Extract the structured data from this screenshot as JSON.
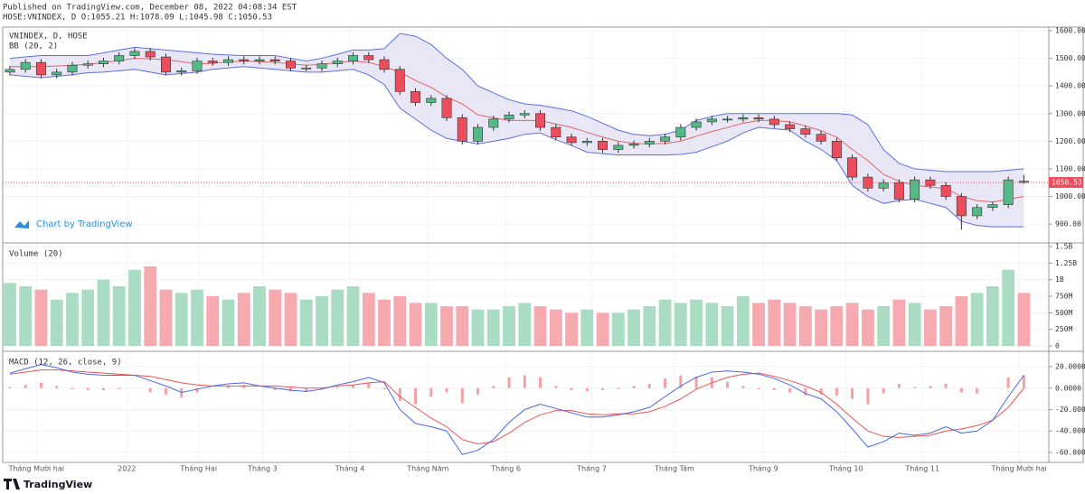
{
  "header": {
    "published": "Published on TradingView.com, December 08, 2022 04:08:34 EST",
    "symbol_line": "HOSE:VNINDEX, D O:1055.21 H:1078.09 L:1045.98 C:1050.53",
    "watermark": "Chart by TradingView",
    "footer": "TradingView"
  },
  "chart_data": [
    {
      "type": "candlestick",
      "title": "VNINDEX, D, HOSE",
      "indicator": "BB (20, 2)",
      "xlim": [
        -0.46,
        66.6
      ],
      "ylim": [
        835,
        1613
      ],
      "yticks": [
        {
          "value": 900,
          "label": "900.00"
        },
        {
          "value": 1000,
          "label": "1000.00"
        },
        {
          "value": 1100,
          "label": "1100.00"
        },
        {
          "value": 1200,
          "label": "1200.00"
        },
        {
          "value": 1300,
          "label": "1300.00"
        },
        {
          "value": 1400,
          "label": "1400.00"
        },
        {
          "value": 1500,
          "label": "1500.00"
        },
        {
          "value": 1600,
          "label": "1600.00"
        }
      ],
      "up_color": "#53b987",
      "down_color": "#eb4d5c",
      "band_color": "#5b6ee1",
      "band_fill": "#e4e1f4",
      "basis_color": "#e06666",
      "open": [
        1450,
        1460,
        1485,
        1440,
        1450,
        1475,
        1480,
        1490,
        1510,
        1525,
        1505,
        1450,
        1455,
        1490,
        1485,
        1495,
        1490,
        1495,
        1490,
        1465,
        1465,
        1480,
        1490,
        1510,
        1495,
        1460,
        1380,
        1340,
        1355,
        1285,
        1200,
        1250,
        1280,
        1295,
        1300,
        1250,
        1215,
        1195,
        1200,
        1170,
        1185,
        1190,
        1200,
        1215,
        1250,
        1270,
        1280,
        1280,
        1285,
        1280,
        1260,
        1245,
        1225,
        1200,
        1140,
        1070,
        1030,
        1050,
        990,
        1060,
        1040,
        1000,
        930,
        960,
        970,
        1055.21
      ],
      "high": [
        1472,
        1497,
        1497,
        1462,
        1487,
        1492,
        1502,
        1522,
        1537,
        1537,
        1517,
        1467,
        1502,
        1502,
        1507,
        1507,
        1507,
        1507,
        1502,
        1477,
        1492,
        1502,
        1522,
        1522,
        1507,
        1472,
        1392,
        1367,
        1367,
        1297,
        1262,
        1292,
        1307,
        1312,
        1312,
        1262,
        1227,
        1212,
        1212,
        1197,
        1202,
        1212,
        1227,
        1262,
        1282,
        1292,
        1292,
        1297,
        1297,
        1292,
        1272,
        1257,
        1237,
        1212,
        1152,
        1082,
        1062,
        1062,
        1072,
        1072,
        1052,
        1012,
        972,
        982,
        1072,
        1078.09
      ],
      "low": [
        1438,
        1448,
        1428,
        1428,
        1438,
        1463,
        1468,
        1478,
        1498,
        1493,
        1438,
        1438,
        1443,
        1473,
        1473,
        1478,
        1478,
        1478,
        1453,
        1453,
        1453,
        1468,
        1478,
        1483,
        1448,
        1368,
        1328,
        1328,
        1273,
        1188,
        1188,
        1238,
        1268,
        1283,
        1238,
        1203,
        1183,
        1183,
        1158,
        1158,
        1173,
        1178,
        1188,
        1203,
        1238,
        1258,
        1268,
        1268,
        1268,
        1248,
        1233,
        1213,
        1188,
        1128,
        1058,
        1018,
        1018,
        978,
        978,
        1028,
        988,
        880,
        918,
        948,
        958,
        1045.98
      ],
      "close": [
        1460,
        1485,
        1440,
        1450,
        1475,
        1480,
        1490,
        1510,
        1525,
        1505,
        1450,
        1455,
        1490,
        1485,
        1495,
        1490,
        1495,
        1490,
        1465,
        1465,
        1480,
        1490,
        1510,
        1495,
        1460,
        1380,
        1340,
        1355,
        1285,
        1200,
        1250,
        1280,
        1295,
        1300,
        1250,
        1215,
        1195,
        1200,
        1170,
        1185,
        1190,
        1200,
        1215,
        1250,
        1270,
        1280,
        1280,
        1285,
        1280,
        1260,
        1245,
        1225,
        1200,
        1140,
        1070,
        1030,
        1050,
        990,
        1060,
        1040,
        1000,
        930,
        960,
        970,
        1060,
        1050.53
      ],
      "bb_upper": [
        1500,
        1505,
        1510,
        1510,
        1510,
        1510,
        1520,
        1530,
        1540,
        1535,
        1530,
        1525,
        1520,
        1515,
        1512,
        1510,
        1510,
        1510,
        1500,
        1490,
        1500,
        1515,
        1530,
        1530,
        1535,
        1590,
        1580,
        1550,
        1500,
        1460,
        1400,
        1375,
        1350,
        1335,
        1330,
        1320,
        1310,
        1290,
        1265,
        1240,
        1225,
        1220,
        1225,
        1240,
        1275,
        1290,
        1300,
        1300,
        1300,
        1300,
        1300,
        1300,
        1300,
        1300,
        1295,
        1260,
        1170,
        1120,
        1100,
        1095,
        1090,
        1090,
        1090,
        1090,
        1095,
        1100
      ],
      "bb_basis": [
        1470,
        1470,
        1470,
        1472,
        1475,
        1478,
        1485,
        1492,
        1500,
        1498,
        1495,
        1488,
        1480,
        1482,
        1487,
        1490,
        1488,
        1485,
        1480,
        1475,
        1478,
        1485,
        1490,
        1485,
        1470,
        1450,
        1420,
        1395,
        1360,
        1335,
        1295,
        1285,
        1275,
        1275,
        1275,
        1262,
        1250,
        1232,
        1215,
        1200,
        1192,
        1190,
        1192,
        1200,
        1218,
        1235,
        1250,
        1265,
        1275,
        1275,
        1270,
        1255,
        1238,
        1215,
        1170,
        1130,
        1080,
        1055,
        1040,
        1035,
        1028,
        1000,
        985,
        980,
        990,
        1000
      ],
      "bb_lower": [
        1440,
        1435,
        1430,
        1435,
        1440,
        1448,
        1450,
        1455,
        1460,
        1450,
        1440,
        1445,
        1450,
        1460,
        1465,
        1470,
        1465,
        1460,
        1455,
        1450,
        1450,
        1455,
        1460,
        1440,
        1405,
        1320,
        1280,
        1240,
        1210,
        1200,
        1190,
        1200,
        1210,
        1225,
        1230,
        1205,
        1185,
        1160,
        1155,
        1150,
        1150,
        1150,
        1150,
        1152,
        1160,
        1180,
        1200,
        1230,
        1250,
        1245,
        1240,
        1200,
        1170,
        1130,
        1040,
        1000,
        975,
        985,
        990,
        975,
        960,
        910,
        895,
        890,
        890,
        890
      ]
    },
    {
      "type": "bar",
      "title": "Volume (20)",
      "xlim": [
        -0.46,
        66.6
      ],
      "ylim": [
        -68000000,
        1541000000
      ],
      "yticks": [
        0,
        {
          "value": 250000000,
          "label": "250M"
        },
        {
          "value": 500000000,
          "label": "500M"
        },
        {
          "value": 750000000,
          "label": "750M"
        },
        {
          "value": 1000000000,
          "label": "1B"
        },
        {
          "value": 1250000000,
          "label": "1.25B"
        },
        {
          "value": 1500000000,
          "label": "1.5B"
        }
      ],
      "up_color": "#a9dcc3",
      "down_color": "#f7a9b0",
      "values": [
        950000000,
        900000000,
        850000000,
        700000000,
        800000000,
        850000000,
        1000000000,
        900000000,
        1150000000,
        1200000000,
        850000000,
        800000000,
        850000000,
        750000000,
        700000000,
        800000000,
        900000000,
        850000000,
        800000000,
        700000000,
        750000000,
        850000000,
        900000000,
        800000000,
        700000000,
        750000000,
        650000000,
        650000000,
        600000000,
        600000000,
        550000000,
        550000000,
        600000000,
        650000000,
        600000000,
        550000000,
        500000000,
        550000000,
        500000000,
        500000000,
        550000000,
        600000000,
        700000000,
        650000000,
        700000000,
        650000000,
        600000000,
        750000000,
        650000000,
        700000000,
        650000000,
        600000000,
        550000000,
        600000000,
        650000000,
        550000000,
        600000000,
        700000000,
        650000000,
        550000000,
        600000000,
        750000000,
        800000000,
        900000000,
        1150000000,
        800000000
      ]
    },
    {
      "type": "macd",
      "title": "MACD (12, 26, close, 9)",
      "xlim": [
        -0.46,
        66.6
      ],
      "ylim": [
        -69.3,
        33.5
      ],
      "yticks": [
        {
          "value": -60,
          "label": "-60.0000"
        },
        {
          "value": -40,
          "label": "-40.0000"
        },
        {
          "value": -20,
          "label": "-20.0000"
        },
        {
          "value": 0,
          "label": "0.0000"
        },
        {
          "value": 20,
          "label": "20.0000"
        }
      ],
      "xticks": [
        {
          "value": 1.7,
          "label": "Tháng Mười hai"
        },
        {
          "value": 7.5,
          "label": "2022"
        },
        {
          "value": 12.1,
          "label": "Tháng Hai"
        },
        {
          "value": 16.2,
          "label": "Tháng 3"
        },
        {
          "value": 21.8,
          "label": "Tháng 4"
        },
        {
          "value": 26.8,
          "label": "Tháng Năm"
        },
        {
          "value": 31.8,
          "label": "Tháng 6"
        },
        {
          "value": 37.3,
          "label": "Tháng 7"
        },
        {
          "value": 42.6,
          "label": "Tháng Tám"
        },
        {
          "value": 48.3,
          "label": "Tháng 9"
        },
        {
          "value": 53.6,
          "label": "Tháng 10"
        },
        {
          "value": 58.5,
          "label": "Tháng 11"
        },
        {
          "value": 64.7,
          "label": "Tháng Mười hai"
        }
      ],
      "macd_color": "#4a67e8",
      "signal_color": "#ef5350",
      "histogram_color": "#f4a0a4",
      "macd": [
        14,
        18,
        22,
        19,
        15,
        13,
        12,
        12,
        12,
        7,
        2,
        -4,
        -1,
        2,
        4,
        5,
        2,
        0,
        -2,
        -3,
        -1,
        3,
        6,
        10,
        5,
        -20,
        -33,
        -36,
        -40,
        -62,
        -58,
        -48,
        -32,
        -20,
        -15,
        -19,
        -23,
        -27,
        -27,
        -25,
        -22,
        -18,
        -8,
        2,
        10,
        15,
        16,
        15,
        13,
        9,
        3,
        -5,
        -10,
        -22,
        -38,
        -55,
        -50,
        -42,
        -44,
        -42,
        -36,
        -42,
        -40,
        -30,
        -8,
        12
      ],
      "signal": [
        13,
        15,
        17,
        17,
        16,
        15,
        14,
        13,
        12,
        11,
        8,
        5,
        3,
        2,
        2,
        2,
        2,
        2,
        1,
        0,
        0,
        2,
        3,
        5,
        6,
        -8,
        -18,
        -28,
        -36,
        -48,
        -52,
        -50,
        -42,
        -32,
        -25,
        -21,
        -21,
        -24,
        -25,
        -24,
        -24,
        -22,
        -17,
        -10,
        -1,
        5,
        10,
        13,
        14,
        11,
        7,
        2,
        -4,
        -15,
        -28,
        -40,
        -45,
        -46,
        -45,
        -44,
        -40,
        -38,
        -35,
        -30,
        -18,
        0
      ],
      "histogram": [
        1,
        3,
        5,
        2,
        -1,
        -2,
        -2,
        -1,
        0,
        -4,
        -6,
        -9,
        -4,
        0,
        2,
        3,
        0,
        -2,
        -3,
        -3,
        -1,
        1,
        3,
        5,
        -1,
        -12,
        -15,
        -8,
        -4,
        -14,
        -6,
        2,
        10,
        12,
        10,
        2,
        -2,
        -3,
        -2,
        -1,
        2,
        4,
        9,
        12,
        11,
        10,
        6,
        2,
        -1,
        -2,
        -4,
        -7,
        -6,
        -7,
        -10,
        -15,
        -5,
        4,
        1,
        2,
        4,
        -4,
        -5,
        0,
        10,
        12
      ]
    }
  ]
}
